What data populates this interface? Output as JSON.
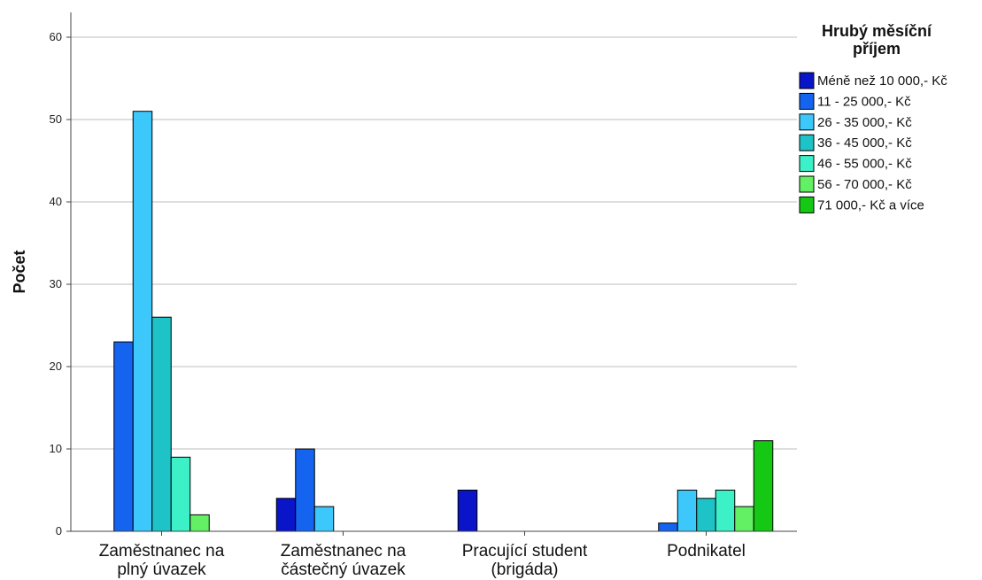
{
  "chart_data": {
    "type": "bar",
    "ylabel": "Počet",
    "ylim": [
      0,
      60
    ],
    "yticks": [
      0,
      10,
      20,
      30,
      40,
      50,
      60
    ],
    "grid": true,
    "legend_position": "top-right",
    "legend_title_lines": [
      "Hrubý měsíční",
      "příjem"
    ],
    "categories": [
      [
        "Zaměstnanec na",
        "plný úvazek"
      ],
      [
        "Zaměstnanec na",
        "částečný úvazek"
      ],
      [
        "Pracující student",
        "(brigáda)"
      ],
      [
        "Podnikatel"
      ]
    ],
    "series": [
      {
        "name": "Méně než 10 000,- Kč",
        "color": "#0a14c8",
        "values": [
          0,
          4,
          5,
          0
        ]
      },
      {
        "name": "11 - 25 000,- Kč",
        "color": "#1464f0",
        "values": [
          23,
          10,
          0,
          1
        ]
      },
      {
        "name": "26 - 35 000,- Kč",
        "color": "#3cc8fa",
        "values": [
          51,
          3,
          0,
          5
        ]
      },
      {
        "name": "36 - 45 000,- Kč",
        "color": "#1ec3c8",
        "values": [
          26,
          0,
          0,
          4
        ]
      },
      {
        "name": "46 - 55 000,- Kč",
        "color": "#3cf0c8",
        "values": [
          9,
          0,
          0,
          5
        ]
      },
      {
        "name": "56 - 70 000,- Kč",
        "color": "#64f064",
        "values": [
          2,
          0,
          0,
          3
        ]
      },
      {
        "name": "71 000,- Kč a více",
        "color": "#14c814",
        "values": [
          0,
          0,
          0,
          11
        ]
      }
    ]
  }
}
